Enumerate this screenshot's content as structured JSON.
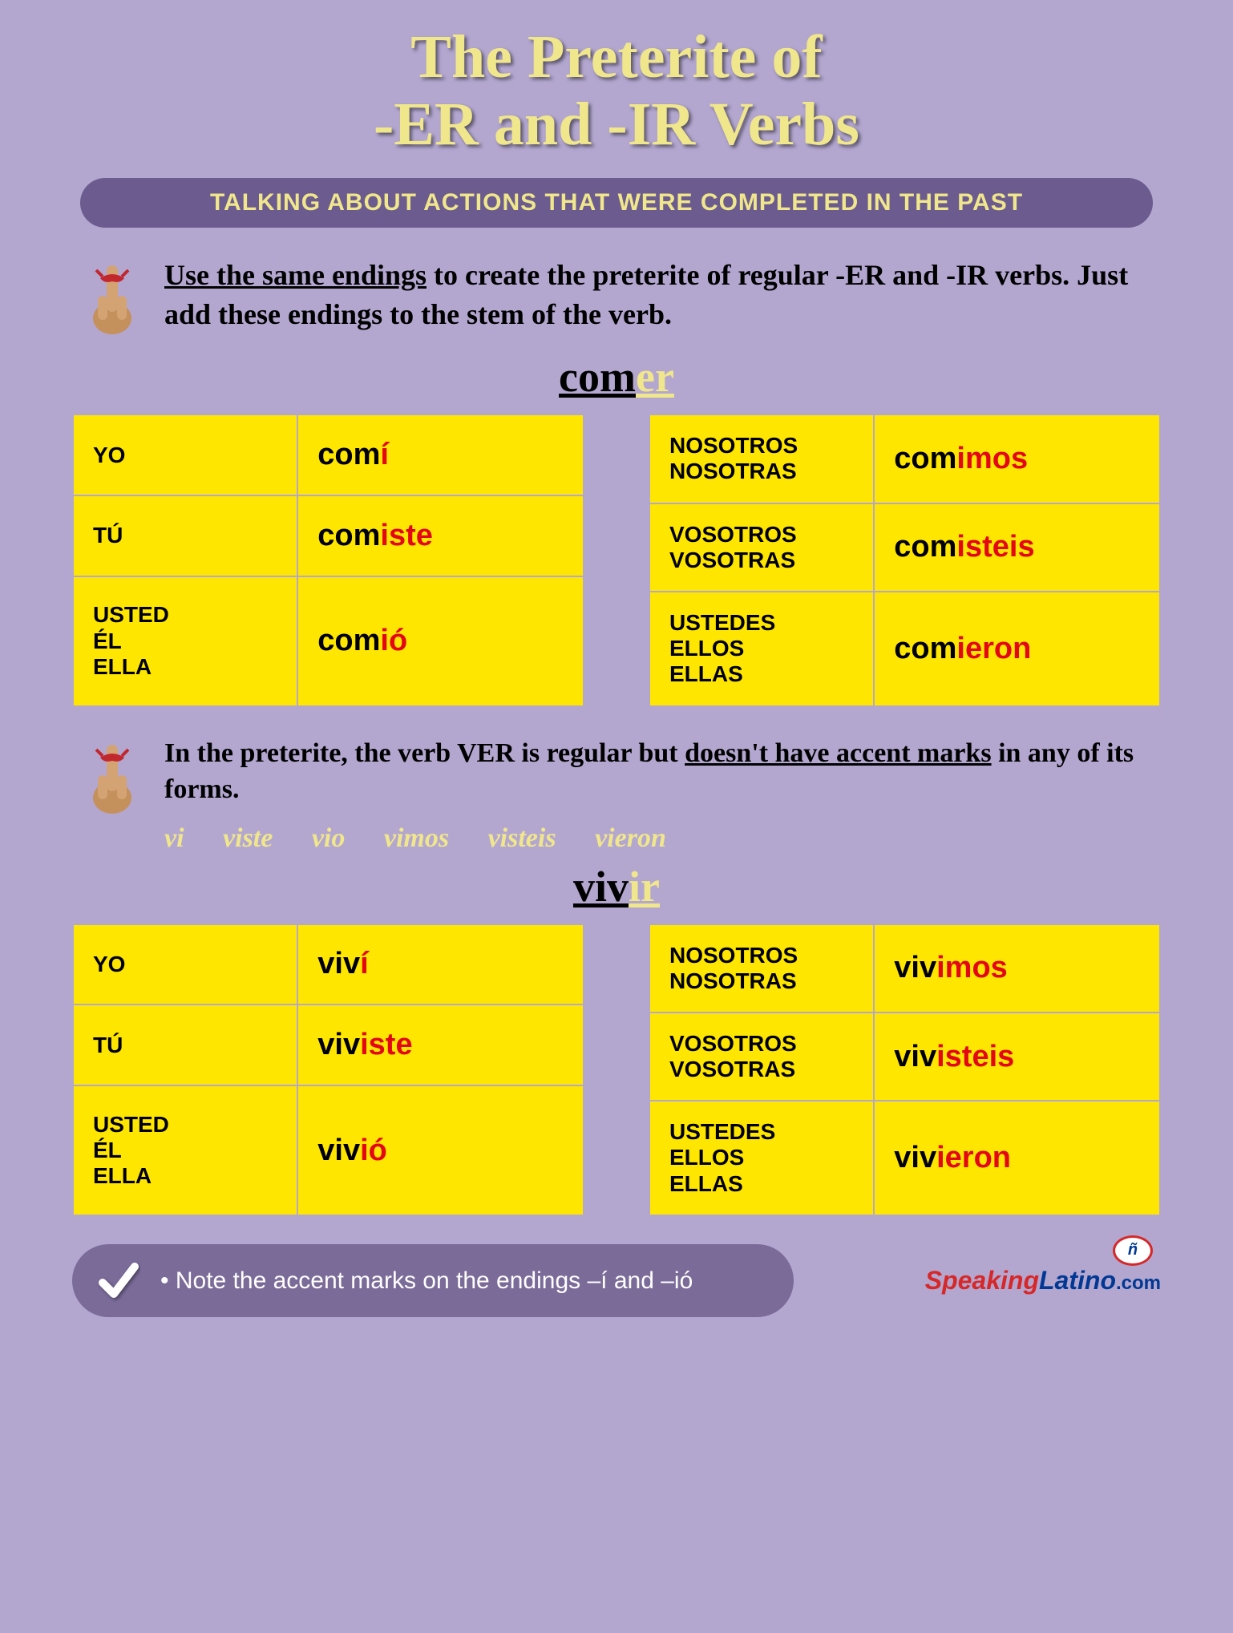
{
  "title_line1": "The Preterite of",
  "title_line2": "-ER and -IR Verbs",
  "subtitle": "TALKING ABOUT ACTIONS THAT WERE COMPLETED IN THE PAST",
  "intro": {
    "underlined": "Use the same endings",
    "rest": " to create the preterite of regular -ER and -IR verbs. Just add these endings to the stem of the verb."
  },
  "verb1": {
    "stem": "com",
    "ending": "er",
    "left": [
      {
        "pronoun": "YO",
        "stem": "com",
        "ending": "í"
      },
      {
        "pronoun": "TÚ",
        "stem": "com",
        "ending": "iste"
      },
      {
        "pronoun": "USTED\nÉL\nELLA",
        "stem": "com",
        "ending": "ió"
      }
    ],
    "right": [
      {
        "pronoun": "NOSOTROS\nNOSOTRAS",
        "stem": "com",
        "ending": "imos"
      },
      {
        "pronoun": "VOSOTROS\nVOSOTRAS",
        "stem": "com",
        "ending": "isteis"
      },
      {
        "pronoun": "USTEDES\nELLOS\nELLAS",
        "stem": "com",
        "ending": "ieron"
      }
    ]
  },
  "note": {
    "part1": "In the preterite, the verb VER is regular but ",
    "underlined": "doesn't have accent marks",
    "part2": " in any of its forms."
  },
  "ver_forms": "vi   viste   vio   vimos   visteis   vieron",
  "verb2": {
    "stem": "viv",
    "ending": "ir",
    "left": [
      {
        "pronoun": "YO",
        "stem": "viv",
        "ending": "í"
      },
      {
        "pronoun": "TÚ",
        "stem": "viv",
        "ending": "iste"
      },
      {
        "pronoun": "USTED\nÉL\nELLA",
        "stem": "viv",
        "ending": "ió"
      }
    ],
    "right": [
      {
        "pronoun": "NOSOTROS\nNOSOTRAS",
        "stem": "viv",
        "ending": "imos"
      },
      {
        "pronoun": "VOSOTROS\nVOSOTRAS",
        "stem": "viv",
        "ending": "isteis"
      },
      {
        "pronoun": "USTEDES\nELLOS\nELLAS",
        "stem": "viv",
        "ending": "ieron"
      }
    ]
  },
  "footer_note": "Note the accent marks on the endings –í and –ió",
  "logo": {
    "speaking": "Speaking",
    "latino": "Latino",
    "com": ".com",
    "bubble": "ñ"
  },
  "colors": {
    "background": "#b3a7d0",
    "title": "#f0e68c",
    "pill_bg": "#6b5b8e",
    "cell_bg": "#ffe600",
    "ending_red": "#e30613",
    "footer_pill": "#7a6b99"
  }
}
